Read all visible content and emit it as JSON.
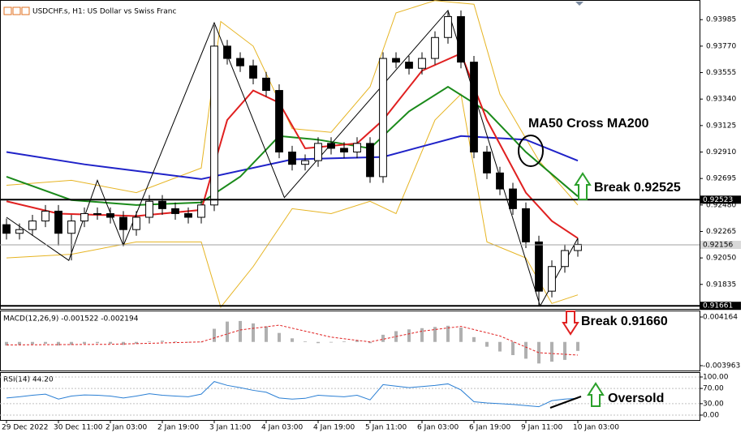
{
  "chart_data": [
    {
      "type": "candlestick",
      "title": "USDCHF.s, H1:  US Dollar vs Swiss Franc",
      "xlim": [
        -0.5,
        53.375
      ],
      "ylim": [
        0.91636,
        0.94138
      ],
      "xticks": [
        {
          "value": 0,
          "label": "29 Dec 2022"
        },
        {
          "value": 4,
          "label": "30 Dec 11:00"
        },
        {
          "value": 8,
          "label": "2 Jan 03:00"
        },
        {
          "value": 12,
          "label": "2 Jan 19:00"
        },
        {
          "value": 16,
          "label": "3 Jan 11:00"
        },
        {
          "value": 20,
          "label": "4 Jan 03:00"
        },
        {
          "value": 24,
          "label": "4 Jan 19:00"
        },
        {
          "value": 28,
          "label": "5 Jan 11:00"
        },
        {
          "value": 32,
          "label": "6 Jan 03:00"
        },
        {
          "value": 36,
          "label": "6 Jan 19:00"
        },
        {
          "value": 40,
          "label": "9 Jan 11:00"
        },
        {
          "value": 44,
          "label": "10 Jan 03:00"
        }
      ],
      "yticks": [
        0.93985,
        {
          "value": 0.9377,
          "label": "0.93770"
        },
        0.93555,
        {
          "value": 0.9334,
          "label": "0.93340"
        },
        0.93125,
        {
          "value": 0.9291,
          "label": "0.92910"
        },
        0.92695,
        {
          "value": 0.9248,
          "label": "0.92480"
        },
        0.92265,
        {
          "value": 0.9205,
          "label": "0.92050"
        },
        0.91835
      ],
      "candles": {
        "color": "#000000",
        "open": [
          0.9232,
          0.9225,
          0.9228,
          0.9235,
          0.9243,
          0.9225,
          0.9235,
          0.9241,
          0.9241,
          0.9238,
          0.9228,
          0.9238,
          0.9251,
          0.9245,
          0.9241,
          0.9238,
          0.9248,
          0.9377,
          0.9367,
          0.9361,
          0.9351,
          0.9341,
          0.9291,
          0.9281,
          0.9284,
          0.9298,
          0.9294,
          0.9291,
          0.9298,
          0.9271,
          0.9367,
          0.9364,
          0.9359,
          0.9367,
          0.9384,
          0.9401,
          0.9364,
          0.9291,
          0.9274,
          0.9261,
          0.9245,
          0.9218,
          0.9178,
          0.9198,
          0.9211
        ],
        "high": [
          0.9237,
          0.9233,
          0.924,
          0.9248,
          0.9248,
          0.924,
          0.9246,
          0.9246,
          0.9246,
          0.9243,
          0.9243,
          0.9256,
          0.9256,
          0.925,
          0.9246,
          0.9253,
          0.9394,
          0.9382,
          0.9372,
          0.9366,
          0.9356,
          0.9346,
          0.9296,
          0.9289,
          0.9303,
          0.9303,
          0.9299,
          0.9303,
          0.9303,
          0.9372,
          0.9372,
          0.9369,
          0.9372,
          0.9389,
          0.9405,
          0.9406,
          0.9369,
          0.9296,
          0.9279,
          0.9266,
          0.925,
          0.9223,
          0.9203,
          0.9216,
          0.9221
        ],
        "low": [
          0.922,
          0.922,
          0.9223,
          0.923,
          0.9215,
          0.9203,
          0.923,
          0.9236,
          0.9233,
          0.9215,
          0.9223,
          0.9233,
          0.924,
          0.9236,
          0.9233,
          0.9233,
          0.9243,
          0.9362,
          0.9356,
          0.9346,
          0.9336,
          0.9286,
          0.9276,
          0.9276,
          0.9279,
          0.9289,
          0.9286,
          0.9286,
          0.9266,
          0.9266,
          0.9359,
          0.9354,
          0.9354,
          0.9362,
          0.9379,
          0.9359,
          0.9286,
          0.9269,
          0.9256,
          0.924,
          0.9213,
          0.9166,
          0.9173,
          0.9193,
          0.9206
        ],
        "close": [
          0.9225,
          0.9228,
          0.9235,
          0.9243,
          0.9225,
          0.9235,
          0.9241,
          0.9241,
          0.9238,
          0.9228,
          0.9238,
          0.9251,
          0.9245,
          0.9241,
          0.9238,
          0.9248,
          0.9377,
          0.9367,
          0.9361,
          0.9351,
          0.9341,
          0.9291,
          0.9281,
          0.9284,
          0.9298,
          0.9294,
          0.9291,
          0.9298,
          0.9271,
          0.9367,
          0.9364,
          0.9359,
          0.9367,
          0.9384,
          0.9401,
          0.9364,
          0.9291,
          0.9274,
          0.9261,
          0.9245,
          0.9218,
          0.9178,
          0.9198,
          0.9211,
          0.9216
        ]
      },
      "series": [
        {
          "color": "#e6b422",
          "x": [
            0,
            5,
            10,
            15,
            16.5,
            19,
            22,
            25,
            28,
            30,
            33,
            36,
            38,
            41,
            44
          ],
          "values": [
            0.9264,
            0.9268,
            0.9258,
            0.9278,
            0.9397,
            0.9377,
            0.931,
            0.9307,
            0.9344,
            0.9404,
            0.9414,
            0.9411,
            0.9338,
            0.9284,
            0.9248
          ]
        },
        {
          "color": "#e6b422",
          "x": [
            0,
            5,
            10,
            15,
            16.5,
            19,
            22,
            25,
            28,
            30,
            33,
            35,
            37,
            40,
            42,
            44
          ],
          "values": [
            0.9205,
            0.9208,
            0.9218,
            0.9218,
            0.9165,
            0.9198,
            0.9245,
            0.9241,
            0.9251,
            0.9241,
            0.9317,
            0.9338,
            0.9218,
            0.9205,
            0.9168,
            0.9175
          ]
        },
        {
          "color": "#1f22c8",
          "x": [
            0,
            6,
            15,
            22,
            29,
            35,
            40,
            44
          ],
          "values": [
            0.9291,
            0.9281,
            0.9269,
            0.9285,
            0.9287,
            0.9304,
            0.9301,
            0.9284
          ]
        },
        {
          "color": "#1a8a1a",
          "x": [
            0,
            5,
            10,
            15,
            18,
            21,
            24,
            28,
            31,
            34,
            37,
            40,
            44
          ],
          "values": [
            0.9271,
            0.9252,
            0.9248,
            0.925,
            0.9271,
            0.9304,
            0.9301,
            0.9294,
            0.9324,
            0.9344,
            0.9324,
            0.9291,
            0.9255
          ]
        },
        {
          "color": "#e02020",
          "x": [
            0,
            4,
            10,
            15,
            17,
            19,
            21,
            23,
            27,
            29,
            32,
            35,
            37,
            40,
            42,
            44
          ],
          "values": [
            0.9251,
            0.9241,
            0.9239,
            0.9244,
            0.9317,
            0.9341,
            0.9331,
            0.9294,
            0.9298,
            0.9317,
            0.9357,
            0.9371,
            0.9317,
            0.9258,
            0.9235,
            0.9221
          ]
        },
        {
          "color": "#000000",
          "x": [
            0,
            4.8,
            7,
            9,
            16,
            21.4,
            34,
            41.1,
            44
          ],
          "values": [
            0.9238,
            0.9203,
            0.9268,
            0.9215,
            0.9396,
            0.9254,
            0.9406,
            0.9166,
            0.9221
          ]
        }
      ],
      "levels": [
        0.92523,
        0.92156,
        0.91661
      ],
      "level_colors": [
        "#000000",
        "#a0a0a0",
        "#000000"
      ],
      "annotations": [
        "MA50 Cross MA200",
        "Break 0.92525",
        "Break 0.91660",
        "Oversold"
      ]
    },
    {
      "type": "macd",
      "title": "MACD(12,26,9) -0.001522 -0.002194",
      "xlim": [
        -0.5,
        53.375
      ],
      "ylim": [
        -0.004776,
        0.005112
      ],
      "yticks": [
        0.004164,
        -0.003963
      ],
      "histogram": {
        "color": "#b0b0b0",
        "values": [
          -0.0006,
          -0.0005,
          -0.0004,
          -0.0003,
          -0.0006,
          -0.0005,
          -0.0003,
          -0.0002,
          -0.0003,
          -0.0005,
          -0.0003,
          0.0001,
          0.0002,
          0.0001,
          -0.0001,
          0,
          0.0022,
          0.0034,
          0.0035,
          0.0031,
          0.0026,
          0.0015,
          0.0006,
          0.0001,
          -0.0002,
          -0.0001,
          0.0001,
          0.0003,
          -0.0002,
          0.0012,
          0.0018,
          0.0021,
          0.0023,
          0.0025,
          0.0027,
          0.0024,
          0.0008,
          -0.0008,
          -0.0016,
          -0.0022,
          -0.0028,
          -0.0036,
          -0.0033,
          -0.003,
          -0.0015
        ]
      },
      "signal": {
        "color": "#e02020",
        "x": [
          0,
          8,
          15,
          18,
          21,
          25,
          28,
          32,
          35,
          38,
          41,
          44
        ],
        "values": [
          -0.0005,
          -0.0004,
          0,
          0.002,
          0.0028,
          0.0008,
          0,
          0.0018,
          0.0026,
          0.001,
          -0.0018,
          -0.0022
        ]
      }
    },
    {
      "type": "line",
      "title": "RSI(14) 44.20",
      "xlim": [
        -0.5,
        53.375
      ],
      "ylim": [
        -12.8,
        110.6
      ],
      "yticks": [
        {
          "value": 100,
          "label": "100.00"
        },
        {
          "value": 70,
          "label": "70.00"
        },
        {
          "value": 30,
          "label": "30.00"
        },
        {
          "value": 0,
          "label": "0.00"
        }
      ],
      "series": [
        {
          "color": "#2a7fd4",
          "values": [
            45,
            48,
            52,
            55,
            42,
            50,
            53,
            52,
            50,
            45,
            50,
            56,
            52,
            50,
            48,
            55,
            88,
            78,
            72,
            65,
            60,
            45,
            42,
            44,
            52,
            50,
            48,
            52,
            40,
            80,
            76,
            72,
            75,
            78,
            82,
            66,
            35,
            32,
            30,
            28,
            25,
            22,
            38,
            42,
            44.2
          ]
        }
      ]
    }
  ]
}
